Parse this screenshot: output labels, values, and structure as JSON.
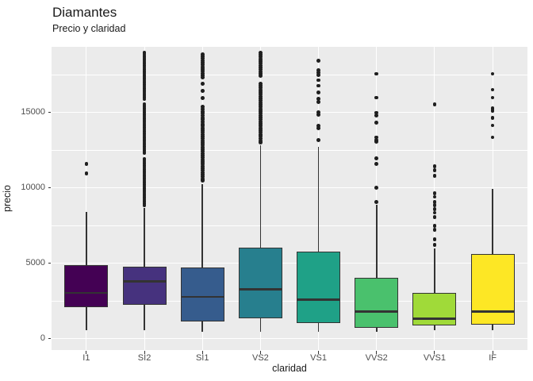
{
  "title": "Diamantes",
  "subtitle": "Precio y claridad",
  "chart_data": {
    "type": "boxplot",
    "title": "Diamantes",
    "subtitle": "Precio y claridad",
    "xlabel": "claridad",
    "ylabel": "precio",
    "categories": [
      "I1",
      "SI2",
      "SI1",
      "VS2",
      "VS1",
      "VVS2",
      "VVS1",
      "IF"
    ],
    "y_ticks": [
      0,
      5000,
      10000,
      15000
    ],
    "y_tick_labels": [
      "0",
      "5000",
      "10000",
      "15000"
    ],
    "y_minor_ticks": [
      2500,
      7500,
      12500,
      17500
    ],
    "ylim": [
      -760,
      19340
    ],
    "grid": "on",
    "legend": "none",
    "colors": {
      "panel_bg": "#ebebeb",
      "grid": "#ffffff",
      "box_border": "#333333",
      "median": "#333333",
      "outlier": "#1f1f1f",
      "tick_label": "#4d4d4d",
      "text": "#1a1a1a"
    },
    "boxes": [
      {
        "label": "I1",
        "fill": "#440154",
        "whisker_low": 530,
        "q1": 2070,
        "median": 3030,
        "q3": 4880,
        "whisker_high": 8400,
        "outliers": [
          11570,
          10960
        ]
      },
      {
        "label": "SI2",
        "fill": "#46327E",
        "whisker_low": 530,
        "q1": 2230,
        "median": 3810,
        "q3": 4770,
        "whisker_high": 8680,
        "outliers": [
          18950,
          18810,
          18670,
          18530,
          18390,
          18250,
          18110,
          17970,
          17830,
          17690,
          17550,
          17410,
          17270,
          17130,
          16990,
          16850,
          16710,
          16570,
          16430,
          16290,
          16150,
          16010,
          15870,
          15550,
          15410,
          15270,
          15130,
          14990,
          14850,
          14710,
          14570,
          14430,
          14290,
          14150,
          14010,
          13870,
          13730,
          13590,
          13450,
          13310,
          13170,
          13030,
          12890,
          12750,
          12610,
          12470,
          12330,
          11900,
          11760,
          11620,
          11480,
          11340,
          11200,
          11060,
          10920,
          10780,
          10640,
          10500,
          10360,
          10220,
          10080,
          9940,
          9800,
          9660,
          9520,
          9380,
          9240,
          9100,
          8960,
          8820
        ]
      },
      {
        "label": "SI1",
        "fill": "#365C8D",
        "whisker_low": 440,
        "q1": 1140,
        "median": 2770,
        "q3": 4730,
        "whisker_high": 10250,
        "outliers": [
          18850,
          18710,
          18570,
          18430,
          18290,
          18150,
          18010,
          17870,
          17730,
          17590,
          17450,
          17310,
          16900,
          16420,
          15950,
          15350,
          15210,
          15070,
          14930,
          14790,
          14650,
          14510,
          14370,
          14230,
          14090,
          13950,
          13810,
          13670,
          13530,
          13390,
          13250,
          13110,
          12970,
          12830,
          12690,
          12550,
          12410,
          12270,
          12130,
          11990,
          11850,
          11710,
          11570,
          11430,
          11290,
          11150,
          11010,
          10870,
          10730,
          10590,
          10460
        ]
      },
      {
        "label": "VS2",
        "fill": "#277F8E",
        "whisker_low": 440,
        "q1": 1320,
        "median": 3280,
        "q3": 6050,
        "whisker_high": 12800,
        "outliers": [
          18950,
          18810,
          18670,
          18530,
          18390,
          18250,
          18110,
          17970,
          17830,
          17690,
          17550,
          17430,
          16900,
          16760,
          16620,
          16480,
          16340,
          16200,
          16060,
          15920,
          15780,
          15640,
          15500,
          15360,
          15220,
          15080,
          14940,
          14800,
          14660,
          14520,
          14380,
          14240,
          14100,
          13960,
          13820,
          13680,
          13540,
          13400,
          13260,
          13120,
          13000
        ]
      },
      {
        "label": "VS1",
        "fill": "#1FA187",
        "whisker_low": 440,
        "q1": 1050,
        "median": 2580,
        "q3": 5790,
        "whisker_high": 12710,
        "outliers": [
          18430,
          17790,
          17630,
          17460,
          17130,
          16760,
          16320,
          15880,
          15700,
          15000,
          14830,
          14120,
          13950,
          13160
        ]
      },
      {
        "label": "VVS2",
        "fill": "#4AC16D",
        "whisker_low": 440,
        "q1": 700,
        "median": 1790,
        "q3": 4030,
        "whisker_high": 8890,
        "outliers": [
          17550,
          15970,
          14970,
          14790,
          14300,
          13340,
          13160,
          13070,
          11930,
          11580,
          10000,
          9040
        ]
      },
      {
        "label": "VVS1",
        "fill": "#A0DA39",
        "whisker_low": 530,
        "q1": 870,
        "median": 1330,
        "q3": 3020,
        "whisker_high": 5960,
        "outliers": [
          15530,
          11400,
          11140,
          10790,
          9650,
          9390,
          9040,
          8860,
          8600,
          8340,
          8070,
          7460,
          7200,
          6580,
          6230
        ]
      },
      {
        "label": "IF",
        "fill": "#FDE725",
        "whisker_low": 560,
        "q1": 950,
        "median": 1780,
        "q3": 5610,
        "whisker_high": 9910,
        "outliers": [
          17550,
          16500,
          15970,
          15260,
          15100,
          14650,
          14130,
          13340
        ]
      }
    ]
  }
}
